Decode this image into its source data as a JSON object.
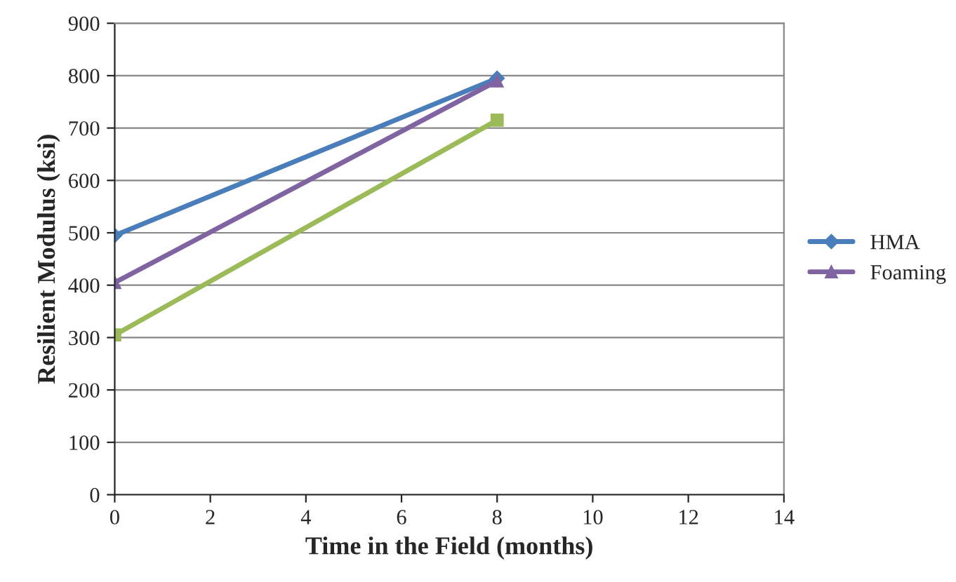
{
  "chart_data": {
    "type": "line",
    "xlabel": "Time in the Field (months)",
    "ylabel": "Resilient Modulus (ksi)",
    "x": [
      0,
      8
    ],
    "series": [
      {
        "name": "HMA",
        "color": "#4a7ebb",
        "values": [
          495,
          795
        ],
        "marker": "diamond"
      },
      {
        "color": "#9bbb59",
        "values": [
          305,
          715
        ],
        "marker": "square"
      },
      {
        "name": "Foaming",
        "color": "#8064a2",
        "values": [
          405,
          790
        ],
        "marker": "triangle"
      }
    ],
    "xlim": [
      0,
      14
    ],
    "xticks": [
      0,
      2,
      4,
      6,
      8,
      10,
      12,
      14
    ],
    "ylim": [
      0,
      900
    ],
    "yticks": [
      0,
      100,
      200,
      300,
      400,
      500,
      600,
      700,
      800,
      900
    ],
    "grid": "y",
    "legend": "right"
  }
}
